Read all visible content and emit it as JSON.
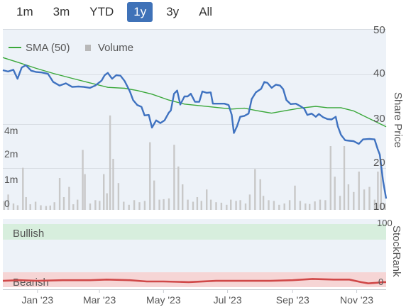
{
  "range_tabs": [
    {
      "label": "1m",
      "active": false
    },
    {
      "label": "3m",
      "active": false
    },
    {
      "label": "YTD",
      "active": false
    },
    {
      "label": "1y",
      "active": true
    },
    {
      "label": "3y",
      "active": false
    },
    {
      "label": "All",
      "active": false
    }
  ],
  "legend": {
    "sma_label": "SMA (50)",
    "volume_label": "Volume"
  },
  "colors": {
    "price_line": "#3f72c0",
    "sma_line": "#3aa83a",
    "volume_bar": "#c8c8c8",
    "bullish_band": "#d7eedd",
    "bullish_text": "#2e8b4a",
    "bearish_band": "#f6d5d5",
    "bearish_text": "#d04040",
    "rank_line": "#d04848",
    "active_tab": "#3f72b8"
  },
  "stockrank_panel": {
    "title": "StockRank",
    "bullish_label": "Bullish",
    "bearish_label": "Bearish",
    "scale_top": "100",
    "scale_bottom": "0"
  },
  "chart_data": [
    {
      "type": "line",
      "title": "",
      "ylabel": "Share Price",
      "ylim": [
        10,
        50
      ],
      "y_ticks": [
        "50",
        "40",
        "30",
        "20",
        "10"
      ],
      "x_range": [
        "2022-11-29",
        "2023-11-29"
      ],
      "x_ticks": [
        {
          "label": "Jan '23",
          "date": "2023-01-01"
        },
        {
          "label": "Mar '23",
          "date": "2023-03-01"
        },
        {
          "label": "May '23",
          "date": "2023-05-01"
        },
        {
          "label": "Jul '23",
          "date": "2023-07-01"
        },
        {
          "label": "Sep '23",
          "date": "2023-09-01"
        },
        {
          "label": "Nov '23",
          "date": "2023-11-01"
        }
      ],
      "series": [
        {
          "name": "Share Price",
          "points": [
            [
              "2022-11-29",
              40.9
            ],
            [
              "2022-12-04",
              40.6
            ],
            [
              "2022-12-09",
              41.0
            ],
            [
              "2022-12-13",
              39.0
            ],
            [
              "2022-12-17",
              41.5
            ],
            [
              "2022-12-21",
              42.0
            ],
            [
              "2022-12-26",
              40.8
            ],
            [
              "2022-12-31",
              40.5
            ],
            [
              "2023-01-05",
              40.4
            ],
            [
              "2023-01-11",
              40.1
            ],
            [
              "2023-01-16",
              38.3
            ],
            [
              "2023-01-22",
              37.5
            ],
            [
              "2023-01-28",
              38.0
            ],
            [
              "2023-02-03",
              37.2
            ],
            [
              "2023-02-09",
              37.3
            ],
            [
              "2023-02-14",
              37.2
            ],
            [
              "2023-02-20",
              37.0
            ],
            [
              "2023-02-25",
              37.5
            ],
            [
              "2023-03-03",
              38.6
            ],
            [
              "2023-03-06",
              39.8
            ],
            [
              "2023-03-09",
              40.3
            ],
            [
              "2023-03-13",
              39.0
            ],
            [
              "2023-03-17",
              39.8
            ],
            [
              "2023-03-21",
              39.7
            ],
            [
              "2023-03-25",
              38.5
            ],
            [
              "2023-03-30",
              36.2
            ],
            [
              "2023-04-02",
              34.3
            ],
            [
              "2023-04-06",
              33.2
            ],
            [
              "2023-04-10",
              32.8
            ],
            [
              "2023-04-13",
              30.9
            ],
            [
              "2023-04-17",
              31.0
            ],
            [
              "2023-04-20",
              28.2
            ],
            [
              "2023-04-24",
              29.8
            ],
            [
              "2023-04-28",
              29.2
            ],
            [
              "2023-05-02",
              29.8
            ],
            [
              "2023-05-06",
              31.5
            ],
            [
              "2023-05-08",
              32.0
            ],
            [
              "2023-05-11",
              35.7
            ],
            [
              "2023-05-14",
              36.4
            ],
            [
              "2023-05-17",
              33.3
            ],
            [
              "2023-05-21",
              35.1
            ],
            [
              "2023-05-24",
              35.1
            ],
            [
              "2023-05-27",
              35.7
            ],
            [
              "2023-05-31",
              33.9
            ],
            [
              "2023-06-04",
              33.9
            ],
            [
              "2023-06-07",
              36.2
            ],
            [
              "2023-06-11",
              35.9
            ],
            [
              "2023-06-15",
              36.0
            ],
            [
              "2023-06-17",
              33.5
            ],
            [
              "2023-06-23",
              33.5
            ],
            [
              "2023-06-28",
              33.5
            ],
            [
              "2023-07-02",
              33.2
            ],
            [
              "2023-07-05",
              31.0
            ],
            [
              "2023-07-07",
              27.0
            ],
            [
              "2023-07-10",
              28.5
            ],
            [
              "2023-07-13",
              30.6
            ],
            [
              "2023-07-17",
              30.8
            ],
            [
              "2023-07-21",
              31.3
            ],
            [
              "2023-07-24",
              34.5
            ],
            [
              "2023-07-28",
              36.0
            ],
            [
              "2023-08-02",
              36.8
            ],
            [
              "2023-08-05",
              38.3
            ],
            [
              "2023-08-08",
              38.1
            ],
            [
              "2023-08-12",
              37.0
            ],
            [
              "2023-08-16",
              37.7
            ],
            [
              "2023-08-20",
              37.5
            ],
            [
              "2023-08-23",
              36.7
            ],
            [
              "2023-08-26",
              34.3
            ],
            [
              "2023-08-30",
              33.4
            ],
            [
              "2023-09-04",
              33.5
            ],
            [
              "2023-09-08",
              33.0
            ],
            [
              "2023-09-12",
              32.4
            ],
            [
              "2023-09-15",
              31.0
            ],
            [
              "2023-09-19",
              31.3
            ],
            [
              "2023-09-23",
              30.6
            ],
            [
              "2023-09-26",
              31.2
            ],
            [
              "2023-09-30",
              30.5
            ],
            [
              "2023-10-04",
              30.1
            ],
            [
              "2023-10-08",
              30.0
            ],
            [
              "2023-10-12",
              30.6
            ],
            [
              "2023-10-14",
              28.5
            ],
            [
              "2023-10-17",
              26.6
            ],
            [
              "2023-10-21",
              25.4
            ],
            [
              "2023-10-25",
              25.3
            ],
            [
              "2023-10-29",
              25.2
            ],
            [
              "2023-11-03",
              24.6
            ],
            [
              "2023-11-07",
              25.6
            ],
            [
              "2023-11-13",
              25.7
            ],
            [
              "2023-11-18",
              25.6
            ],
            [
              "2023-11-21",
              23.4
            ],
            [
              "2023-11-23",
              22.2
            ],
            [
              "2023-11-26",
              16.5
            ],
            [
              "2023-11-29",
              12.5
            ]
          ]
        },
        {
          "name": "SMA (50)",
          "points": [
            [
              "2022-11-29",
              43.7
            ],
            [
              "2022-12-14",
              42.6
            ],
            [
              "2022-12-31",
              41.3
            ],
            [
              "2023-01-16",
              40.2
            ],
            [
              "2023-02-03",
              39.1
            ],
            [
              "2023-02-20",
              38.1
            ],
            [
              "2023-03-09",
              37.1
            ],
            [
              "2023-03-25",
              36.9
            ],
            [
              "2023-04-06",
              36.4
            ],
            [
              "2023-04-20",
              35.6
            ],
            [
              "2023-05-06",
              34.3
            ],
            [
              "2023-05-21",
              33.4
            ],
            [
              "2023-06-07",
              33.0
            ],
            [
              "2023-06-23",
              32.6
            ],
            [
              "2023-07-05",
              32.3
            ],
            [
              "2023-07-17",
              32.5
            ],
            [
              "2023-07-28",
              32.0
            ],
            [
              "2023-08-12",
              31.4
            ],
            [
              "2023-08-26",
              32.0
            ],
            [
              "2023-09-08",
              32.5
            ],
            [
              "2023-09-23",
              32.9
            ],
            [
              "2023-10-04",
              32.6
            ],
            [
              "2023-10-17",
              32.6
            ],
            [
              "2023-10-29",
              31.9
            ],
            [
              "2023-11-13",
              30.2
            ],
            [
              "2023-11-29",
              28.4
            ]
          ]
        }
      ]
    },
    {
      "type": "bar",
      "title": "",
      "name": "Volume",
      "y_ticks": [
        "4m",
        "2m",
        "1m",
        "0"
      ],
      "y_tick_values": [
        4000000,
        2000000,
        1000000,
        0
      ],
      "ylim": [
        0,
        5500000
      ],
      "bars": [
        [
          "2022-11-30",
          350000
        ],
        [
          "2022-12-04",
          600000
        ],
        [
          "2022-12-09",
          250000
        ],
        [
          "2022-12-13",
          180000
        ],
        [
          "2022-12-18",
          1650000
        ],
        [
          "2022-12-21",
          500000
        ],
        [
          "2022-12-25",
          220000
        ],
        [
          "2022-12-30",
          320000
        ],
        [
          "2023-01-04",
          180000
        ],
        [
          "2023-01-09",
          150000
        ],
        [
          "2023-01-13",
          170000
        ],
        [
          "2023-01-17",
          300000
        ],
        [
          "2023-01-22",
          1250000
        ],
        [
          "2023-01-26",
          500000
        ],
        [
          "2023-01-31",
          900000
        ],
        [
          "2023-02-04",
          220000
        ],
        [
          "2023-02-08",
          400000
        ],
        [
          "2023-02-13",
          2350000
        ],
        [
          "2023-02-15",
          1400000
        ],
        [
          "2023-02-20",
          250000
        ],
        [
          "2023-02-25",
          380000
        ],
        [
          "2023-03-01",
          350000
        ],
        [
          "2023-03-05",
          1400000
        ],
        [
          "2023-03-08",
          650000
        ],
        [
          "2023-03-11",
          3700000
        ],
        [
          "2023-03-14",
          2000000
        ],
        [
          "2023-03-19",
          1050000
        ],
        [
          "2023-03-24",
          320000
        ],
        [
          "2023-03-29",
          200000
        ],
        [
          "2023-04-03",
          380000
        ],
        [
          "2023-04-08",
          300000
        ],
        [
          "2023-04-13",
          350000
        ],
        [
          "2023-04-18",
          2650000
        ],
        [
          "2023-04-22",
          1150000
        ],
        [
          "2023-04-27",
          400000
        ],
        [
          "2023-05-01",
          420000
        ],
        [
          "2023-05-06",
          450000
        ],
        [
          "2023-05-11",
          2550000
        ],
        [
          "2023-05-15",
          1700000
        ],
        [
          "2023-05-19",
          1000000
        ],
        [
          "2023-05-24",
          400000
        ],
        [
          "2023-05-29",
          320000
        ],
        [
          "2023-06-02",
          500000
        ],
        [
          "2023-06-06",
          350000
        ],
        [
          "2023-06-11",
          800000
        ],
        [
          "2023-06-15",
          400000
        ],
        [
          "2023-06-20",
          300000
        ],
        [
          "2023-06-25",
          280000
        ],
        [
          "2023-06-30",
          200000
        ],
        [
          "2023-07-04",
          400000
        ],
        [
          "2023-07-09",
          350000
        ],
        [
          "2023-07-13",
          380000
        ],
        [
          "2023-07-18",
          250000
        ],
        [
          "2023-07-22",
          600000
        ],
        [
          "2023-07-27",
          1600000
        ],
        [
          "2023-08-01",
          1200000
        ],
        [
          "2023-08-04",
          550000
        ],
        [
          "2023-08-09",
          380000
        ],
        [
          "2023-08-14",
          350000
        ],
        [
          "2023-08-19",
          200000
        ],
        [
          "2023-08-24",
          250000
        ],
        [
          "2023-08-29",
          380000
        ],
        [
          "2023-09-03",
          950000
        ],
        [
          "2023-09-08",
          350000
        ],
        [
          "2023-09-13",
          250000
        ],
        [
          "2023-09-17",
          230000
        ],
        [
          "2023-09-22",
          330000
        ],
        [
          "2023-09-27",
          400000
        ],
        [
          "2023-10-02",
          380000
        ],
        [
          "2023-10-07",
          2500000
        ],
        [
          "2023-10-11",
          1300000
        ],
        [
          "2023-10-16",
          550000
        ],
        [
          "2023-10-20",
          2500000
        ],
        [
          "2023-10-24",
          1000000
        ],
        [
          "2023-10-29",
          700000
        ],
        [
          "2023-11-03",
          1500000
        ],
        [
          "2023-11-08",
          800000
        ],
        [
          "2023-11-13",
          900000
        ],
        [
          "2023-11-18",
          400000
        ],
        [
          "2023-11-21",
          1500000
        ],
        [
          "2023-11-24",
          1800000
        ],
        [
          "2023-11-28",
          250000
        ]
      ]
    },
    {
      "type": "line",
      "title": "",
      "name": "StockRank",
      "ylim": [
        0,
        100
      ],
      "series": [
        {
          "name": "StockRank",
          "points": [
            [
              "2022-11-29",
              10
            ],
            [
              "2022-12-15",
              11
            ],
            [
              "2023-01-01",
              10
            ],
            [
              "2023-01-25",
              11
            ],
            [
              "2023-02-20",
              11
            ],
            [
              "2023-03-08",
              12
            ],
            [
              "2023-03-30",
              11
            ],
            [
              "2023-04-15",
              9
            ],
            [
              "2023-05-01",
              9
            ],
            [
              "2023-05-25",
              8
            ],
            [
              "2023-06-20",
              10
            ],
            [
              "2023-07-15",
              10
            ],
            [
              "2023-08-10",
              10
            ],
            [
              "2023-09-01",
              11
            ],
            [
              "2023-09-20",
              13
            ],
            [
              "2023-10-10",
              12
            ],
            [
              "2023-10-25",
              12
            ],
            [
              "2023-11-05",
              8
            ],
            [
              "2023-11-12",
              6
            ],
            [
              "2023-11-20",
              7
            ],
            [
              "2023-11-26",
              8
            ],
            [
              "2023-11-29",
              8
            ]
          ]
        }
      ]
    }
  ]
}
